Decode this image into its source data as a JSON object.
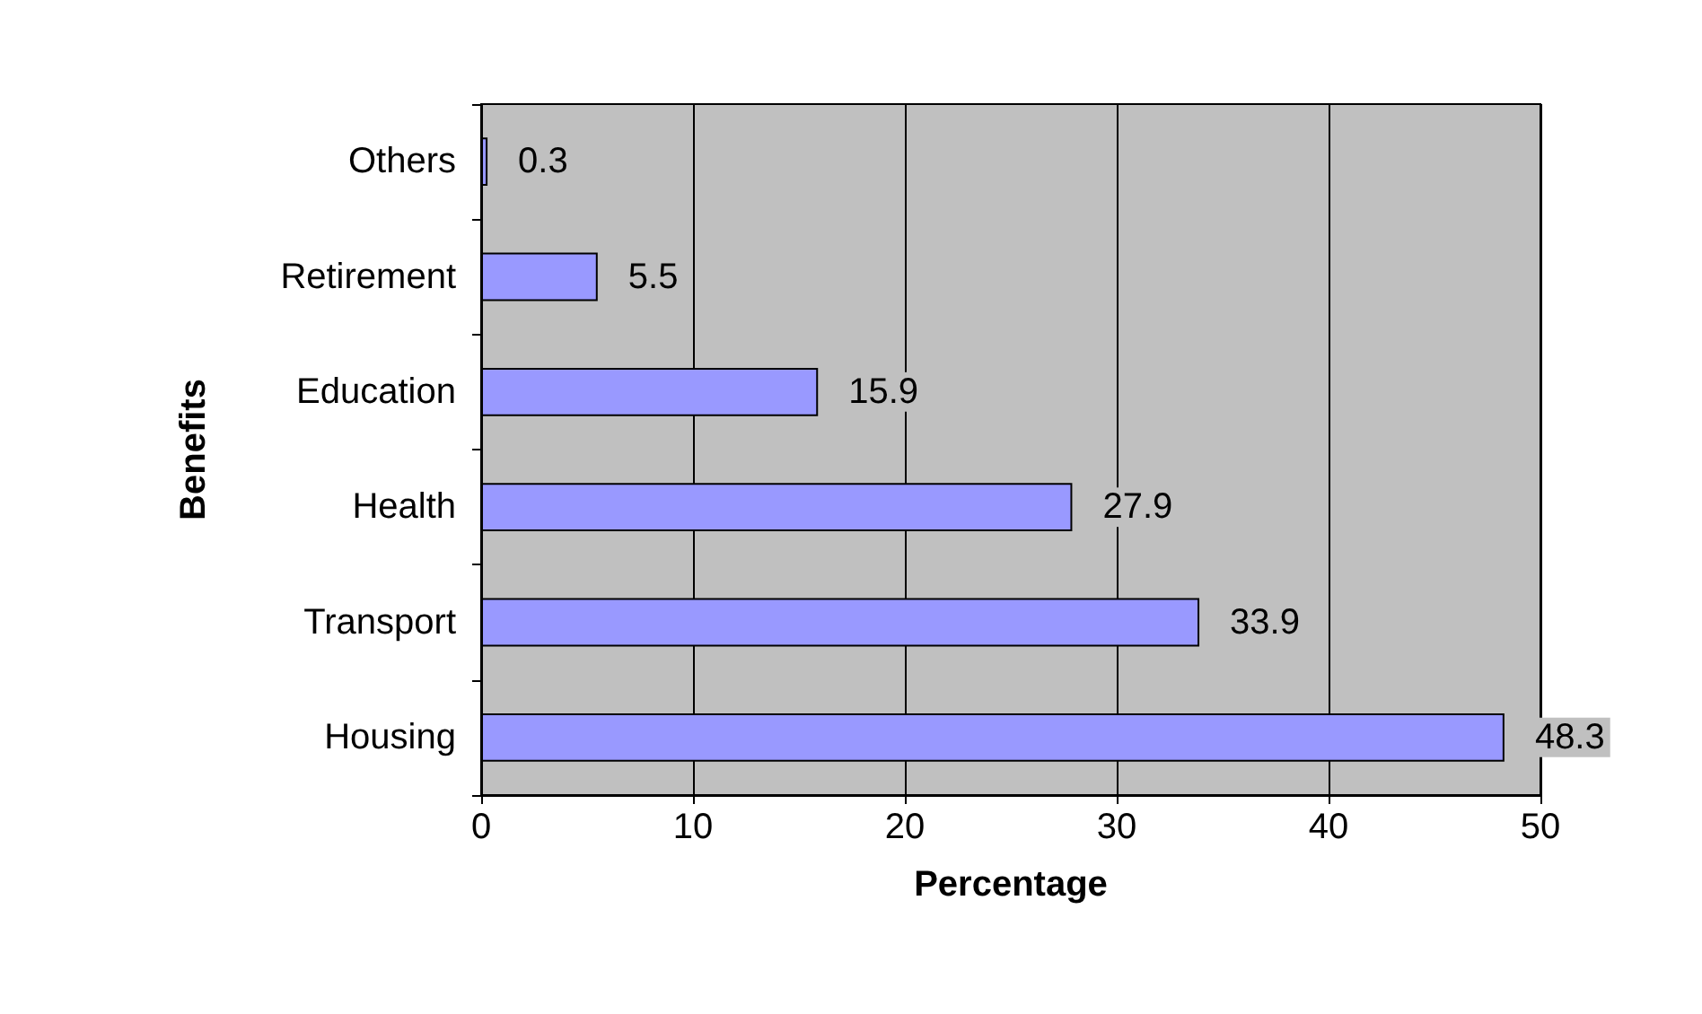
{
  "chart_data": {
    "type": "bar",
    "orientation": "horizontal",
    "xlabel": "Percentage",
    "ylabel": "Benefits",
    "categories": [
      "Others",
      "Retirement",
      "Education",
      "Health",
      "Transport",
      "Housing"
    ],
    "values": [
      0.3,
      5.5,
      15.9,
      27.9,
      33.9,
      48.3
    ],
    "color": "#9999ff",
    "xlim": [
      0,
      50
    ],
    "xticks": [
      0,
      10,
      20,
      30,
      40,
      50
    ],
    "grid": "x",
    "data_labels": true
  }
}
